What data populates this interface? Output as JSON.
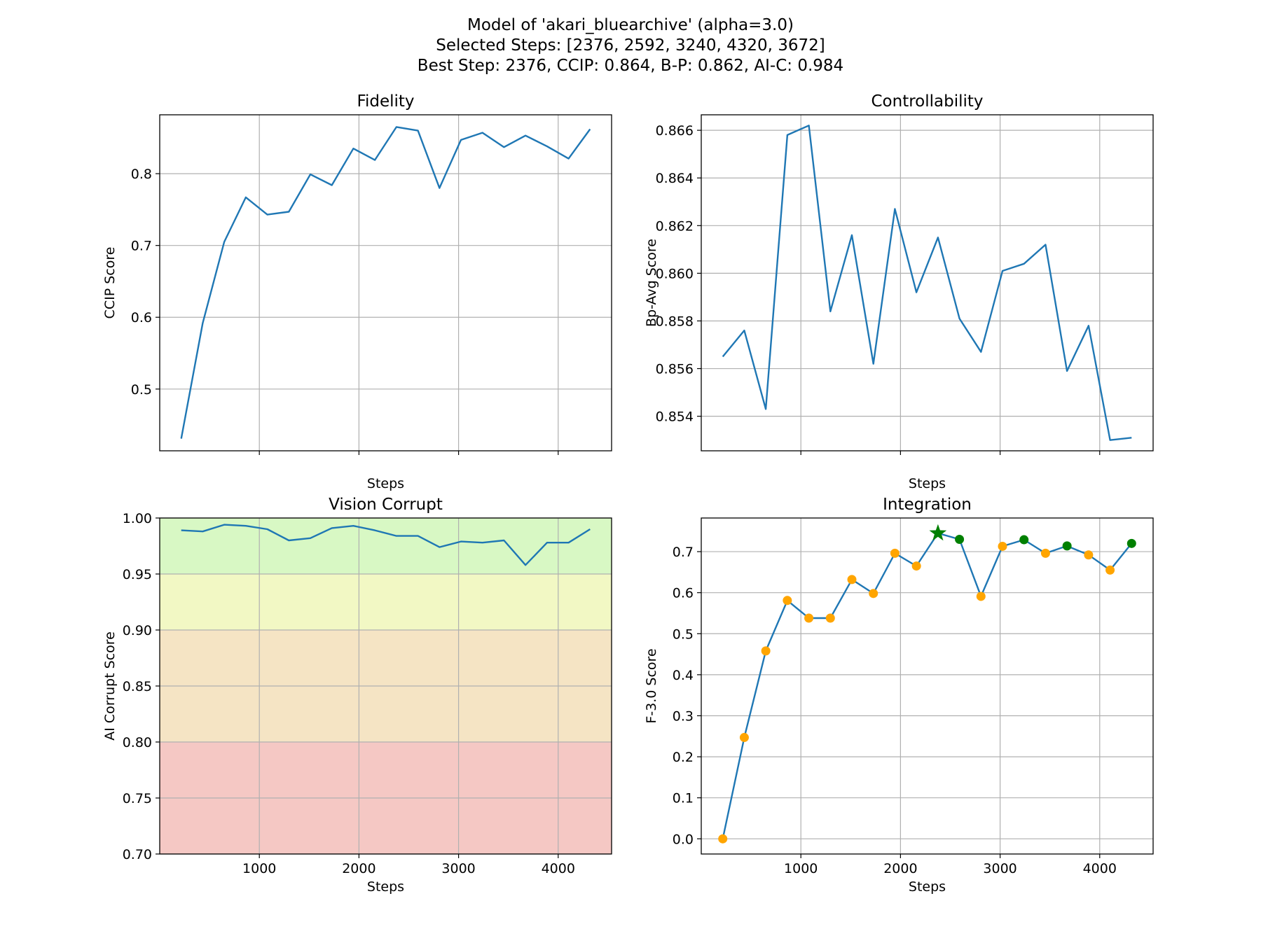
{
  "figure": {
    "title_lines": [
      "Model of 'akari_bluearchive' (alpha=3.0)",
      "Selected Steps: [2376, 2592, 3240, 4320, 3672]",
      "Best Step: 2376, CCIP: 0.864, B-P: 0.862, AI-C: 0.984"
    ]
  },
  "chart_data": [
    {
      "type": "line",
      "title": "Fidelity",
      "xlabel": "Steps",
      "ylabel": "CCIP Score",
      "xlim": [
        0,
        4536
      ],
      "ylim": [
        0.414,
        0.882
      ],
      "xticks": [
        1000,
        2000,
        3000,
        4000
      ],
      "show_xtick_labels": false,
      "yticks": [
        0.5,
        0.6,
        0.7,
        0.8
      ],
      "ytick_labels": [
        "0.5",
        "0.6",
        "0.7",
        "0.8"
      ],
      "grid": true,
      "line_color": "#1f77b4",
      "x": [
        216,
        432,
        648,
        864,
        1080,
        1296,
        1512,
        1728,
        1944,
        2160,
        2376,
        2592,
        2808,
        3024,
        3240,
        3456,
        3672,
        3888,
        4104,
        4320
      ],
      "y": [
        0.431,
        0.592,
        0.705,
        0.767,
        0.743,
        0.747,
        0.799,
        0.784,
        0.835,
        0.819,
        0.865,
        0.86,
        0.78,
        0.847,
        0.857,
        0.837,
        0.853,
        0.838,
        0.821,
        0.862
      ]
    },
    {
      "type": "line",
      "title": "Controllability",
      "xlabel": "Steps",
      "ylabel": "Bp-Avg Score",
      "xlim": [
        0,
        4536
      ],
      "ylim": [
        0.85255,
        0.86665
      ],
      "xticks": [
        1000,
        2000,
        3000,
        4000
      ],
      "show_xtick_labels": false,
      "yticks": [
        0.854,
        0.856,
        0.858,
        0.86,
        0.862,
        0.864,
        0.866
      ],
      "ytick_labels": [
        "0.854",
        "0.856",
        "0.858",
        "0.860",
        "0.862",
        "0.864",
        "0.866"
      ],
      "grid": true,
      "line_color": "#1f77b4",
      "x": [
        216,
        432,
        648,
        864,
        1080,
        1296,
        1512,
        1728,
        1944,
        2160,
        2376,
        2592,
        2808,
        3024,
        3240,
        3456,
        3672,
        3888,
        4104,
        4320
      ],
      "y": [
        0.8565,
        0.8576,
        0.8543,
        0.8658,
        0.8662,
        0.8584,
        0.8616,
        0.8562,
        0.8627,
        0.8592,
        0.8615,
        0.8581,
        0.8567,
        0.8601,
        0.8604,
        0.8612,
        0.8559,
        0.8578,
        0.853,
        0.8531
      ]
    },
    {
      "type": "line",
      "title": "Vision Corrupt",
      "xlabel": "Steps",
      "ylabel": "AI Corrupt Score",
      "xlim": [
        0,
        4536
      ],
      "ylim": [
        0.7,
        1.0
      ],
      "xticks": [
        1000,
        2000,
        3000,
        4000
      ],
      "xtick_labels": [
        "1000",
        "2000",
        "3000",
        "4000"
      ],
      "show_xtick_labels": true,
      "yticks": [
        0.7,
        0.75,
        0.8,
        0.85,
        0.9,
        0.95,
        1.0
      ],
      "ytick_labels": [
        "0.70",
        "0.75",
        "0.80",
        "0.85",
        "0.90",
        "0.95",
        "1.00"
      ],
      "grid": true,
      "line_color": "#1f77b4",
      "bands": [
        {
          "from": 0.95,
          "to": 1.0,
          "color": "#d8f8c4"
        },
        {
          "from": 0.9,
          "to": 0.95,
          "color": "#f2f8c4"
        },
        {
          "from": 0.8,
          "to": 0.9,
          "color": "#f5e4c4"
        },
        {
          "from": 0.7,
          "to": 0.8,
          "color": "#f5c8c4"
        }
      ],
      "x": [
        216,
        432,
        648,
        864,
        1080,
        1296,
        1512,
        1728,
        1944,
        2160,
        2376,
        2592,
        2808,
        3024,
        3240,
        3456,
        3672,
        3888,
        4104,
        4320
      ],
      "y": [
        0.989,
        0.988,
        0.994,
        0.993,
        0.99,
        0.98,
        0.982,
        0.991,
        0.993,
        0.989,
        0.984,
        0.984,
        0.974,
        0.979,
        0.978,
        0.98,
        0.958,
        0.978,
        0.978,
        0.99
      ]
    },
    {
      "type": "line",
      "title": "Integration",
      "xlabel": "Steps",
      "ylabel": "F-3.0 Score",
      "xlim": [
        0,
        4536
      ],
      "ylim": [
        -0.037,
        0.782
      ],
      "xticks": [
        1000,
        2000,
        3000,
        4000
      ],
      "xtick_labels": [
        "1000",
        "2000",
        "3000",
        "4000"
      ],
      "show_xtick_labels": true,
      "yticks": [
        0.0,
        0.1,
        0.2,
        0.3,
        0.4,
        0.5,
        0.6,
        0.7
      ],
      "ytick_labels": [
        "0.0",
        "0.1",
        "0.2",
        "0.3",
        "0.4",
        "0.5",
        "0.6",
        "0.7"
      ],
      "grid": true,
      "line_color": "#1f77b4",
      "point_color": "#ffa500",
      "selected_color": "#008000",
      "best_marker": "star",
      "x": [
        216,
        432,
        648,
        864,
        1080,
        1296,
        1512,
        1728,
        1944,
        2160,
        2376,
        2592,
        2808,
        3024,
        3240,
        3456,
        3672,
        3888,
        4104,
        4320
      ],
      "y": [
        0.0,
        0.247,
        0.458,
        0.581,
        0.538,
        0.538,
        0.632,
        0.598,
        0.696,
        0.665,
        0.745,
        0.73,
        0.591,
        0.713,
        0.729,
        0.696,
        0.714,
        0.692,
        0.655,
        0.72
      ],
      "selected_steps": [
        2376,
        2592,
        3240,
        4320,
        3672
      ],
      "best_step": 2376
    }
  ]
}
